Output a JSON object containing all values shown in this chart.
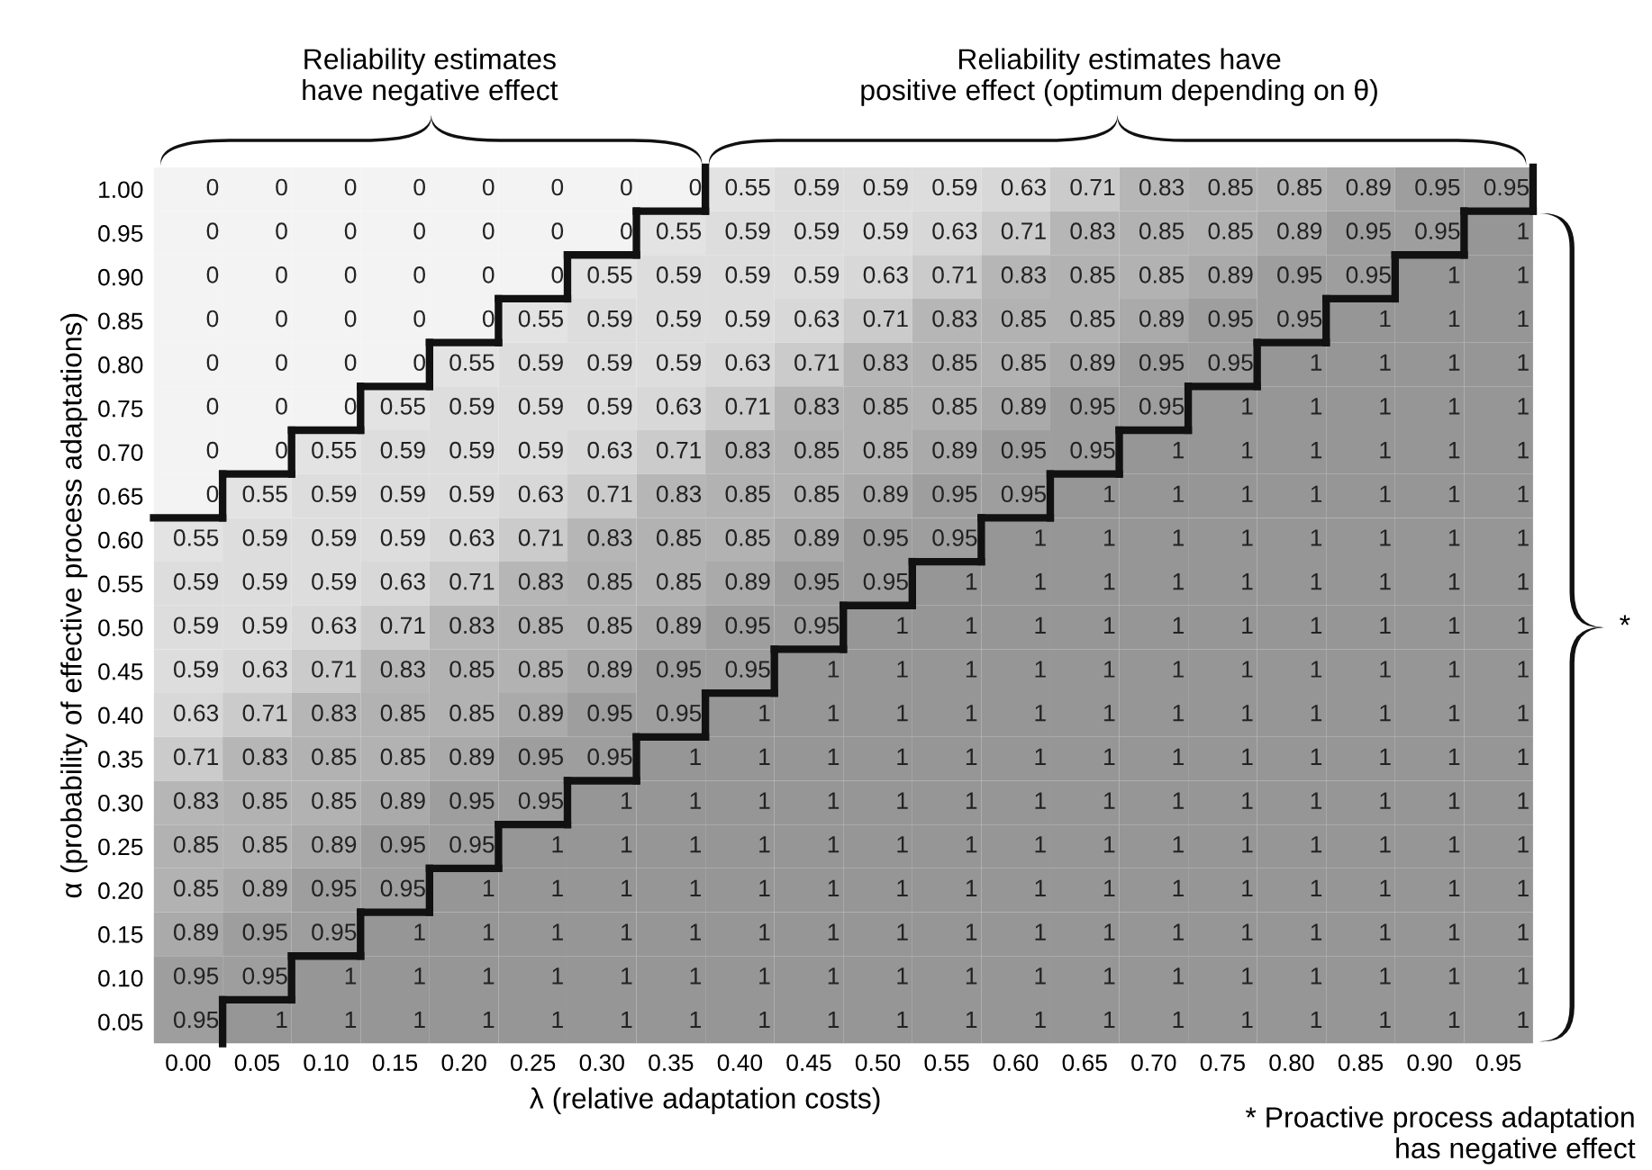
{
  "chart_data": {
    "type": "heatmap",
    "xlabel": "λ (relative adaptation costs)",
    "ylabel": "α (probability of effective process adaptations)",
    "categories": [
      "0.00",
      "0.05",
      "0.10",
      "0.15",
      "0.20",
      "0.25",
      "0.30",
      "0.35",
      "0.40",
      "0.45",
      "0.50",
      "0.55",
      "0.60",
      "0.65",
      "0.70",
      "0.75",
      "0.80",
      "0.85",
      "0.90",
      "0.95"
    ],
    "y_categories": [
      "1.00",
      "0.95",
      "0.90",
      "0.85",
      "0.80",
      "0.75",
      "0.70",
      "0.65",
      "0.60",
      "0.55",
      "0.50",
      "0.45",
      "0.40",
      "0.35",
      "0.30",
      "0.25",
      "0.20",
      "0.15",
      "0.10",
      "0.05"
    ],
    "cells": [
      [
        0,
        0,
        0,
        0,
        0,
        0,
        0,
        0,
        0.55,
        0.59,
        0.59,
        0.59,
        0.63,
        0.71,
        0.83,
        0.85,
        0.85,
        0.89,
        0.95,
        0.95
      ],
      [
        0,
        0,
        0,
        0,
        0,
        0,
        0,
        0.55,
        0.59,
        0.59,
        0.59,
        0.63,
        0.71,
        0.83,
        0.85,
        0.85,
        0.89,
        0.95,
        0.95,
        1
      ],
      [
        0,
        0,
        0,
        0,
        0,
        0,
        0.55,
        0.59,
        0.59,
        0.59,
        0.63,
        0.71,
        0.83,
        0.85,
        0.85,
        0.89,
        0.95,
        0.95,
        1,
        1
      ],
      [
        0,
        0,
        0,
        0,
        0,
        0.55,
        0.59,
        0.59,
        0.59,
        0.63,
        0.71,
        0.83,
        0.85,
        0.85,
        0.89,
        0.95,
        0.95,
        1,
        1,
        1
      ],
      [
        0,
        0,
        0,
        0,
        0.55,
        0.59,
        0.59,
        0.59,
        0.63,
        0.71,
        0.83,
        0.85,
        0.85,
        0.89,
        0.95,
        0.95,
        1,
        1,
        1,
        1
      ],
      [
        0,
        0,
        0,
        0.55,
        0.59,
        0.59,
        0.59,
        0.63,
        0.71,
        0.83,
        0.85,
        0.85,
        0.89,
        0.95,
        0.95,
        1,
        1,
        1,
        1,
        1
      ],
      [
        0,
        0,
        0.55,
        0.59,
        0.59,
        0.59,
        0.63,
        0.71,
        0.83,
        0.85,
        0.85,
        0.89,
        0.95,
        0.95,
        1,
        1,
        1,
        1,
        1,
        1
      ],
      [
        0,
        0.55,
        0.59,
        0.59,
        0.59,
        0.63,
        0.71,
        0.83,
        0.85,
        0.85,
        0.89,
        0.95,
        0.95,
        1,
        1,
        1,
        1,
        1,
        1,
        1
      ],
      [
        0.55,
        0.59,
        0.59,
        0.59,
        0.63,
        0.71,
        0.83,
        0.85,
        0.85,
        0.89,
        0.95,
        0.95,
        1,
        1,
        1,
        1,
        1,
        1,
        1,
        1
      ],
      [
        0.59,
        0.59,
        0.59,
        0.63,
        0.71,
        0.83,
        0.85,
        0.85,
        0.89,
        0.95,
        0.95,
        1,
        1,
        1,
        1,
        1,
        1,
        1,
        1,
        1
      ],
      [
        0.59,
        0.59,
        0.63,
        0.71,
        0.83,
        0.85,
        0.85,
        0.89,
        0.95,
        0.95,
        1,
        1,
        1,
        1,
        1,
        1,
        1,
        1,
        1,
        1
      ],
      [
        0.59,
        0.63,
        0.71,
        0.83,
        0.85,
        0.85,
        0.89,
        0.95,
        0.95,
        1,
        1,
        1,
        1,
        1,
        1,
        1,
        1,
        1,
        1,
        1
      ],
      [
        0.63,
        0.71,
        0.83,
        0.85,
        0.85,
        0.89,
        0.95,
        0.95,
        1,
        1,
        1,
        1,
        1,
        1,
        1,
        1,
        1,
        1,
        1,
        1
      ],
      [
        0.71,
        0.83,
        0.85,
        0.85,
        0.89,
        0.95,
        0.95,
        1,
        1,
        1,
        1,
        1,
        1,
        1,
        1,
        1,
        1,
        1,
        1,
        1
      ],
      [
        0.83,
        0.85,
        0.85,
        0.89,
        0.95,
        0.95,
        1,
        1,
        1,
        1,
        1,
        1,
        1,
        1,
        1,
        1,
        1,
        1,
        1,
        1
      ],
      [
        0.85,
        0.85,
        0.89,
        0.95,
        0.95,
        1,
        1,
        1,
        1,
        1,
        1,
        1,
        1,
        1,
        1,
        1,
        1,
        1,
        1,
        1
      ],
      [
        0.85,
        0.89,
        0.95,
        0.95,
        1,
        1,
        1,
        1,
        1,
        1,
        1,
        1,
        1,
        1,
        1,
        1,
        1,
        1,
        1,
        1
      ],
      [
        0.89,
        0.95,
        0.95,
        1,
        1,
        1,
        1,
        1,
        1,
        1,
        1,
        1,
        1,
        1,
        1,
        1,
        1,
        1,
        1,
        1
      ],
      [
        0.95,
        0.95,
        1,
        1,
        1,
        1,
        1,
        1,
        1,
        1,
        1,
        1,
        1,
        1,
        1,
        1,
        1,
        1,
        1,
        1
      ],
      [
        0.95,
        1,
        1,
        1,
        1,
        1,
        1,
        1,
        1,
        1,
        1,
        1,
        1,
        1,
        1,
        1,
        1,
        1,
        1,
        1
      ]
    ],
    "data_labels": true,
    "annotations": [
      "Reliability estimates\nhave negative effect",
      "Reliability estimates have\npositive effect (optimum depending on θ)",
      "*",
      "* Proactive process adaptation\nhas negative effect"
    ]
  }
}
